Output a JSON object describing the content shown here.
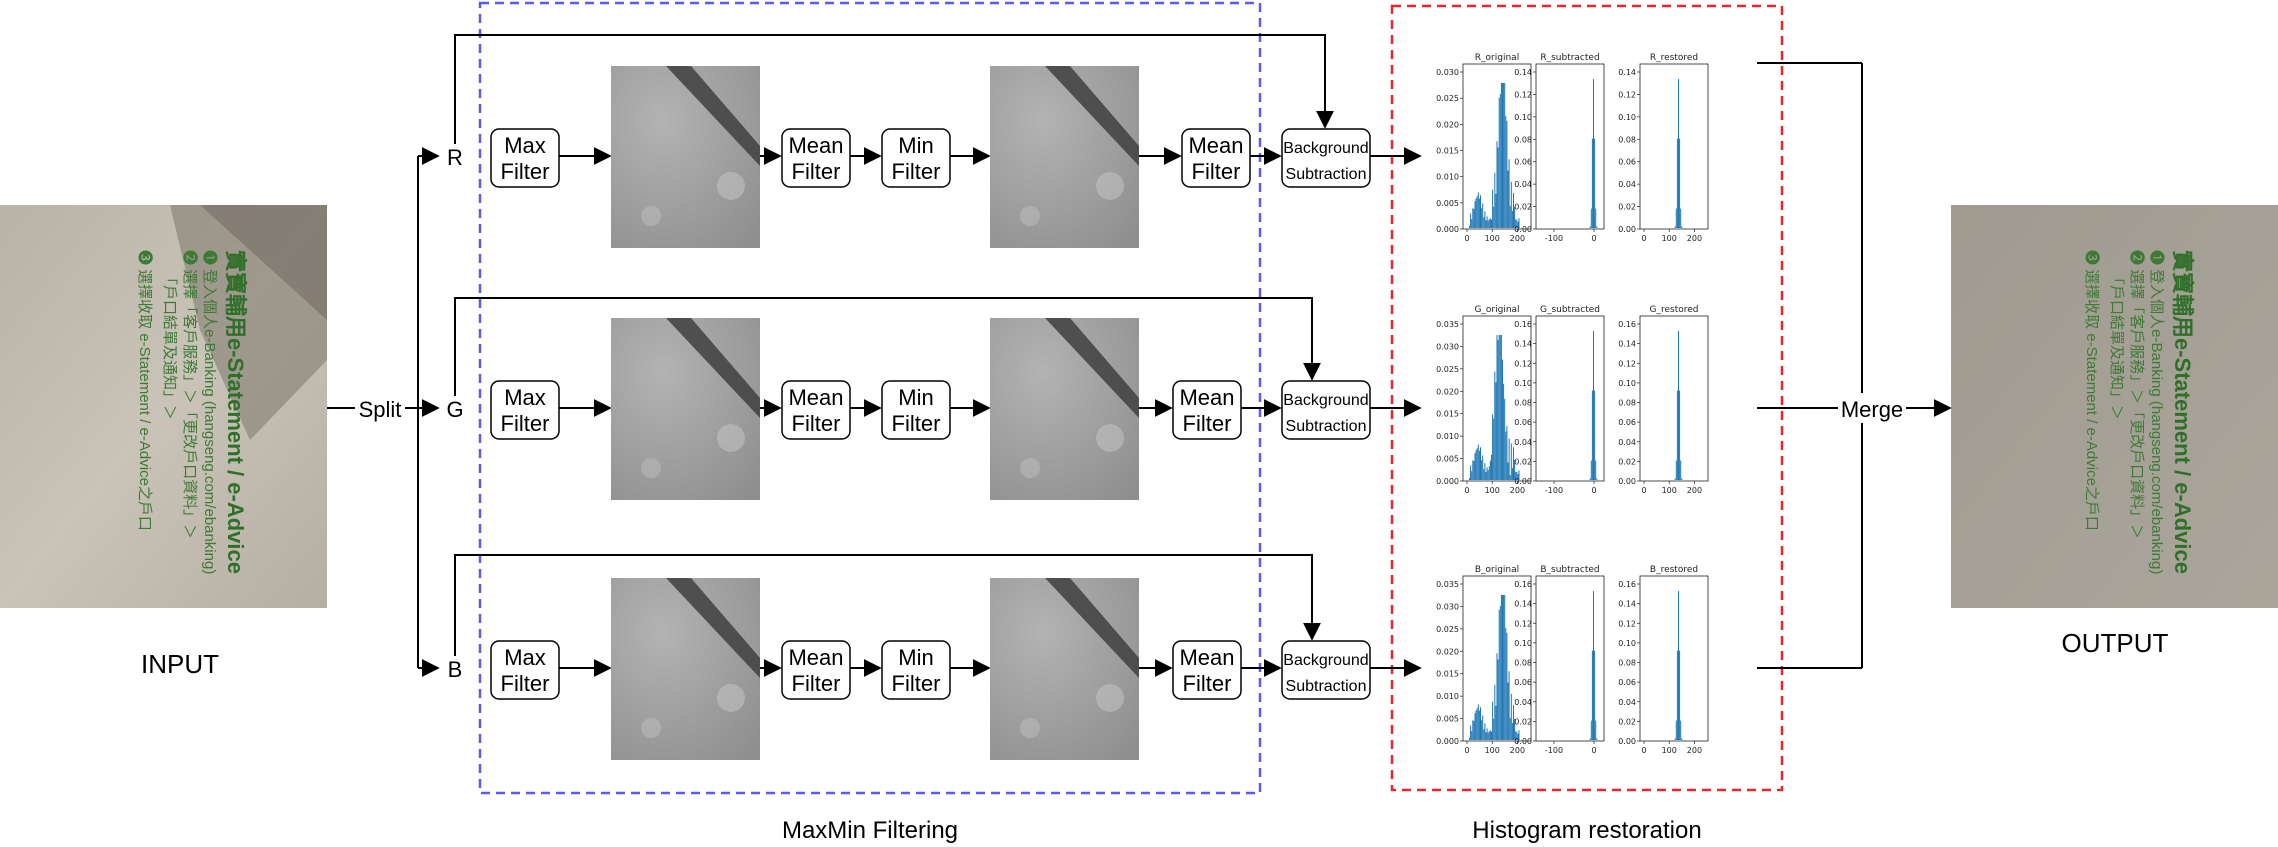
{
  "labels": {
    "input": "INPUT",
    "output": "OUTPUT",
    "split": "Split",
    "merge": "Merge",
    "maxmin_section": "MaxMin Filtering",
    "hist_section": "Histogram restoration"
  },
  "channels": [
    {
      "name": "R"
    },
    {
      "name": "G"
    },
    {
      "name": "B"
    }
  ],
  "filters": {
    "max": [
      "Max",
      "Filter"
    ],
    "mean": [
      "Mean",
      "Filter"
    ],
    "min": [
      "Min",
      "Filter"
    ],
    "bg": [
      "Background",
      "Subtraction"
    ]
  },
  "colors": {
    "maxmin_border": "#5b5bf0",
    "hist_border": "#e8262b",
    "histogram": "#1f77b4"
  },
  "document_text": {
    "title": "實寶輔用e-Statement / e-Advice",
    "line1": "❶ 登入個人e-Banking (hangseng.com/ebanking)",
    "line2": "❷ 選擇「客戶服務」＞「更改戶口資料」＞",
    "line3": "「戶口結單及通知」＞",
    "line4": "❸ 選擇收取 e-Statement / e-Advice之戶口"
  },
  "histograms": [
    {
      "panels": [
        {
          "title": "R_original",
          "kind": "orig",
          "yticks": [
            "0.030",
            "0.025",
            "0.020",
            "0.015",
            "0.010",
            "0.005",
            "0.000"
          ],
          "xticks": [
            "0",
            "100",
            "200"
          ]
        },
        {
          "title": "R_subtracted",
          "kind": "sub",
          "yticks": [
            "0.14",
            "0.12",
            "0.10",
            "0.08",
            "0.06",
            "0.04",
            "0.02",
            "0.00"
          ],
          "xticks": [
            "-100",
            "0"
          ]
        },
        {
          "title": "R_restored",
          "kind": "rest",
          "yticks": [
            "0.14",
            "0.12",
            "0.10",
            "0.08",
            "0.06",
            "0.04",
            "0.02",
            "0.00"
          ],
          "xticks": [
            "0",
            "100",
            "200"
          ]
        }
      ]
    },
    {
      "panels": [
        {
          "title": "G_original",
          "kind": "orig",
          "yticks": [
            "0.035",
            "0.030",
            "0.025",
            "0.020",
            "0.015",
            "0.010",
            "0.005",
            "0.000"
          ],
          "xticks": [
            "0",
            "100",
            "200"
          ]
        },
        {
          "title": "G_subtracted",
          "kind": "sub",
          "yticks": [
            "0.16",
            "0.14",
            "0.12",
            "0.10",
            "0.08",
            "0.06",
            "0.04",
            "0.02",
            "0.00"
          ],
          "xticks": [
            "-100",
            "0"
          ]
        },
        {
          "title": "G_restored",
          "kind": "rest",
          "yticks": [
            "0.16",
            "0.14",
            "0.12",
            "0.10",
            "0.08",
            "0.06",
            "0.04",
            "0.02",
            "0.00"
          ],
          "xticks": [
            "0",
            "100",
            "200"
          ]
        }
      ]
    },
    {
      "panels": [
        {
          "title": "B_original",
          "kind": "orig",
          "yticks": [
            "0.035",
            "0.030",
            "0.025",
            "0.020",
            "0.015",
            "0.010",
            "0.005",
            "0.000"
          ],
          "xticks": [
            "0",
            "100",
            "200"
          ]
        },
        {
          "title": "B_subtracted",
          "kind": "sub",
          "yticks": [
            "0.16",
            "0.14",
            "0.12",
            "0.10",
            "0.08",
            "0.06",
            "0.04",
            "0.02",
            "0.00"
          ],
          "xticks": [
            "-100",
            "0"
          ]
        },
        {
          "title": "B_restored",
          "kind": "rest",
          "yticks": [
            "0.16",
            "0.14",
            "0.12",
            "0.10",
            "0.08",
            "0.06",
            "0.04",
            "0.02",
            "0.00"
          ],
          "xticks": [
            "0",
            "100",
            "200"
          ]
        }
      ]
    }
  ]
}
